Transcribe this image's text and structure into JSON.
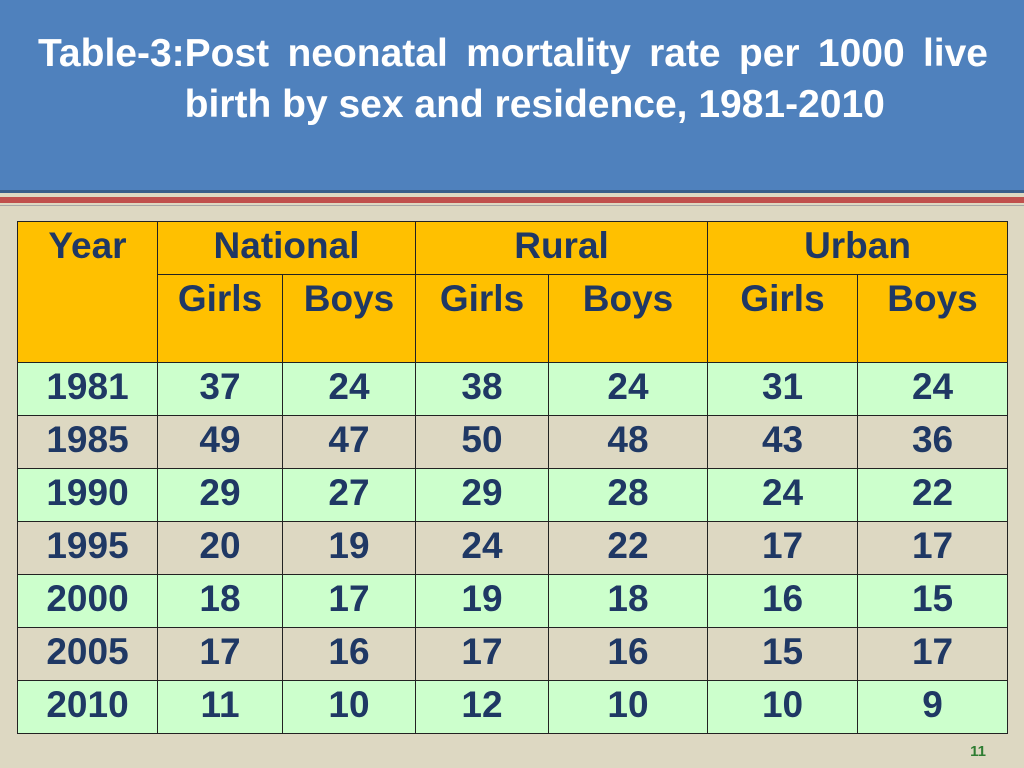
{
  "title": {
    "prefix": "Table-3:",
    "text": "Post neonatal mortality rate per 1000 live birth by sex and residence, 1981-2010"
  },
  "table": {
    "year_header": "Year",
    "groups": [
      "National",
      "Rural",
      "Urban"
    ],
    "subheaders": [
      "Girls",
      "Boys",
      "Girls",
      "Boys",
      "Girls",
      "Boys"
    ],
    "rows": [
      {
        "year": "1981",
        "values": [
          "37",
          "24",
          "38",
          "24",
          "31",
          "24"
        ]
      },
      {
        "year": "1985",
        "values": [
          "49",
          "47",
          "50",
          "48",
          "43",
          "36"
        ]
      },
      {
        "year": "1990",
        "values": [
          "29",
          "27",
          "29",
          "28",
          "24",
          "22"
        ]
      },
      {
        "year": "1995",
        "values": [
          "20",
          "19",
          "24",
          "22",
          "17",
          "17"
        ]
      },
      {
        "year": "2000",
        "values": [
          "18",
          "17",
          "19",
          "18",
          "16",
          "15"
        ]
      },
      {
        "year": "2005",
        "values": [
          "17",
          "16",
          "17",
          "16",
          "15",
          "17"
        ]
      },
      {
        "year": "2010",
        "values": [
          "11",
          "10",
          "12",
          "10",
          "10",
          "9"
        ]
      }
    ]
  },
  "page_number": "11",
  "colors": {
    "header_bg": "#4f81bd",
    "stripe": "#c0504d",
    "table_header_bg": "#ffc000",
    "row_highlight_bg": "#ccffcc",
    "slide_bg": "#ddd8c2",
    "table_text": "#1f3864"
  }
}
